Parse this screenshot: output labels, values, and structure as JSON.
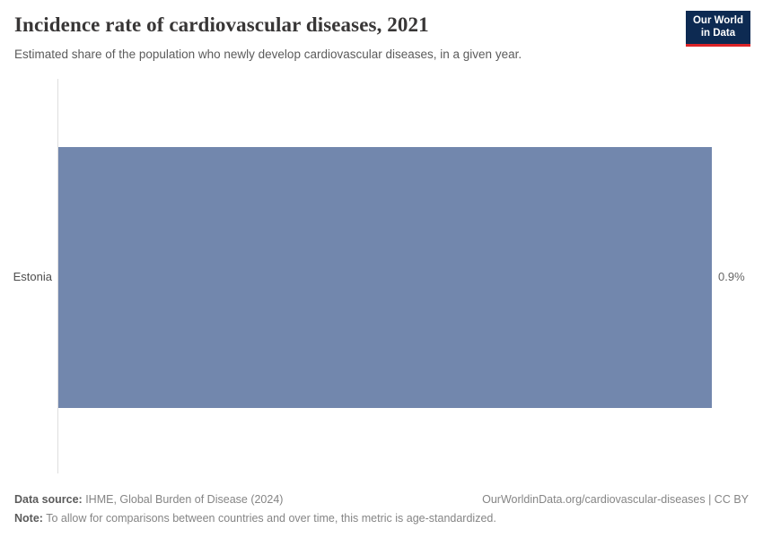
{
  "header": {
    "title": "Incidence rate of cardiovascular diseases, 2021",
    "subtitle": "Estimated share of the population who newly develop cardiovascular diseases, in a given year."
  },
  "logo": {
    "line1": "Our World",
    "line2": "in Data",
    "bg_color": "#0d2a52",
    "accent_color": "#dc2327"
  },
  "chart_data": {
    "type": "bar",
    "orientation": "horizontal",
    "title": "Incidence rate of cardiovascular diseases, 2021",
    "subtitle": "Estimated share of the population who newly develop cardiovascular diseases, in a given year.",
    "categories": [
      "Estonia"
    ],
    "values": [
      0.9
    ],
    "value_labels": [
      "0.9%"
    ],
    "unit": "%",
    "xlabel": "",
    "ylabel": "",
    "xlim": [
      0,
      0.9
    ],
    "grid": false,
    "legend": false,
    "bar_color": "#7287ad",
    "axis_color": "#dedede"
  },
  "footer": {
    "datasource_label": "Data source:",
    "datasource_text": " IHME, Global Burden of Disease (2024)",
    "citation_text": "OurWorldinData.org/cardiovascular-diseases | CC BY",
    "note_label": "Note:",
    "note_text": " To allow for comparisons between countries and over time, this metric is age-standardized."
  }
}
